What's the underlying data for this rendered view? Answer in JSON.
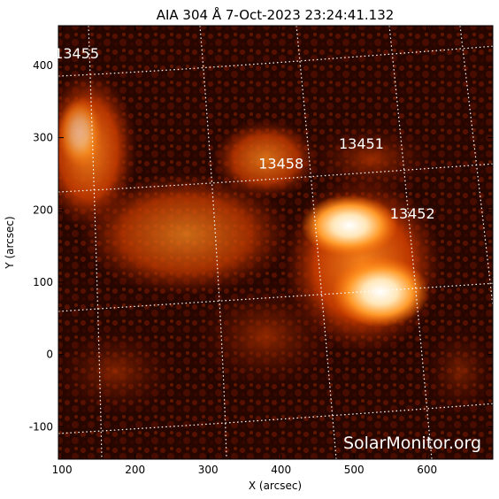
{
  "title": "AIA 304 Å  7-Oct-2023 23:24:41.132",
  "axes": {
    "xlabel": "X (arcsec)",
    "ylabel": "Y (arcsec)",
    "x_ticks": [
      "100",
      "200",
      "300",
      "400",
      "500",
      "600"
    ],
    "y_ticks": [
      "-100",
      "0",
      "100",
      "200",
      "300",
      "400"
    ],
    "xlim": [
      95,
      690
    ],
    "ylim": [
      -145,
      455
    ]
  },
  "regions": [
    {
      "id": "13455",
      "x": 120,
      "y": 410
    },
    {
      "id": "13451",
      "x": 510,
      "y": 285
    },
    {
      "id": "13458",
      "x": 400,
      "y": 257
    },
    {
      "id": "13452",
      "x": 580,
      "y": 188
    }
  ],
  "watermark": "SolarMonitor.org",
  "colors": {
    "image_bg": "#1a0300",
    "glow_mid": "#b33200",
    "glow_hot": "#ff9a2a",
    "glow_core": "#ffffff",
    "grid": "#ffffff"
  }
}
